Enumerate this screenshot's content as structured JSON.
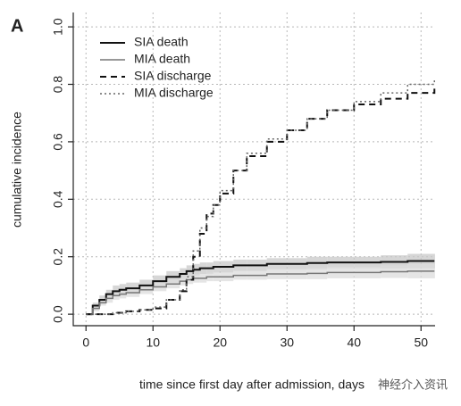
{
  "chart_data": {
    "type": "line",
    "drawstyle": "steps-post",
    "panel_label": "A",
    "xlabel": "time since first day after admission, days",
    "ylabel": "cumulative incidence",
    "watermark": "神经介入资讯",
    "xlim": [
      -1.9,
      52.1
    ],
    "ylim": [
      -0.04,
      1.05
    ],
    "xticks": [
      0,
      10,
      20,
      30,
      40,
      50
    ],
    "yticks": [
      {
        "value": 0,
        "label": "0.0"
      },
      0.2,
      0.4,
      0.6,
      0.8,
      {
        "value": 1,
        "label": "1.0"
      }
    ],
    "grid": true,
    "legend": "upper left",
    "x": [
      0,
      1,
      2,
      3,
      4,
      5,
      6,
      8,
      10,
      12,
      14,
      15,
      16,
      17,
      18,
      19,
      20,
      22,
      24,
      27,
      30,
      33,
      36,
      40,
      44,
      48,
      52
    ],
    "series": [
      {
        "name": "SIA death",
        "color": "#111111",
        "linestyle": "solid",
        "band_color": "#c8c8c8",
        "values": [
          0,
          0.03,
          0.05,
          0.07,
          0.08,
          0.085,
          0.09,
          0.1,
          0.115,
          0.13,
          0.14,
          0.15,
          0.155,
          0.16,
          0.16,
          0.165,
          0.165,
          0.17,
          0.17,
          0.175,
          0.175,
          0.178,
          0.18,
          0.18,
          0.182,
          0.185,
          0.185
        ],
        "band_upper": [
          0,
          0.04,
          0.065,
          0.085,
          0.1,
          0.105,
          0.11,
          0.12,
          0.135,
          0.15,
          0.16,
          0.17,
          0.175,
          0.18,
          0.18,
          0.185,
          0.185,
          0.19,
          0.19,
          0.195,
          0.195,
          0.2,
          0.2,
          0.2,
          0.205,
          0.21,
          0.21
        ],
        "band_lower": [
          0,
          0.02,
          0.035,
          0.055,
          0.06,
          0.065,
          0.07,
          0.08,
          0.095,
          0.11,
          0.12,
          0.13,
          0.135,
          0.14,
          0.14,
          0.145,
          0.145,
          0.15,
          0.15,
          0.155,
          0.155,
          0.156,
          0.16,
          0.16,
          0.159,
          0.16,
          0.16
        ]
      },
      {
        "name": "MIA death",
        "color": "#777777",
        "linestyle": "solid",
        "band_color": "#dcdcdc",
        "values": [
          0,
          0.02,
          0.04,
          0.055,
          0.065,
          0.07,
          0.075,
          0.085,
          0.095,
          0.105,
          0.115,
          0.12,
          0.125,
          0.125,
          0.13,
          0.13,
          0.13,
          0.135,
          0.135,
          0.14,
          0.14,
          0.142,
          0.145,
          0.145,
          0.148,
          0.15,
          0.15
        ],
        "band_upper": [
          0,
          0.03,
          0.05,
          0.07,
          0.08,
          0.085,
          0.09,
          0.1,
          0.11,
          0.12,
          0.13,
          0.135,
          0.14,
          0.14,
          0.145,
          0.145,
          0.145,
          0.15,
          0.15,
          0.158,
          0.158,
          0.162,
          0.165,
          0.165,
          0.17,
          0.175,
          0.175
        ],
        "band_lower": [
          0,
          0.01,
          0.03,
          0.04,
          0.05,
          0.055,
          0.06,
          0.07,
          0.08,
          0.09,
          0.1,
          0.105,
          0.11,
          0.11,
          0.115,
          0.115,
          0.115,
          0.12,
          0.12,
          0.122,
          0.122,
          0.122,
          0.125,
          0.125,
          0.126,
          0.125,
          0.125
        ]
      },
      {
        "name": "SIA discharge",
        "color": "#111111",
        "linestyle": "dashed",
        "values": [
          0,
          0,
          0,
          0,
          0.005,
          0.005,
          0.01,
          0.015,
          0.02,
          0.05,
          0.08,
          0.12,
          0.2,
          0.28,
          0.35,
          0.38,
          0.42,
          0.5,
          0.55,
          0.6,
          0.64,
          0.68,
          0.71,
          0.73,
          0.75,
          0.77,
          0.785
        ]
      },
      {
        "name": "MIA discharge",
        "color": "#666666",
        "linestyle": "dotted",
        "values": [
          0,
          0,
          0,
          0,
          0.005,
          0.005,
          0.01,
          0.015,
          0.025,
          0.05,
          0.085,
          0.13,
          0.22,
          0.3,
          0.34,
          0.38,
          0.43,
          0.5,
          0.56,
          0.61,
          0.64,
          0.68,
          0.71,
          0.74,
          0.77,
          0.8,
          0.82
        ]
      }
    ]
  }
}
